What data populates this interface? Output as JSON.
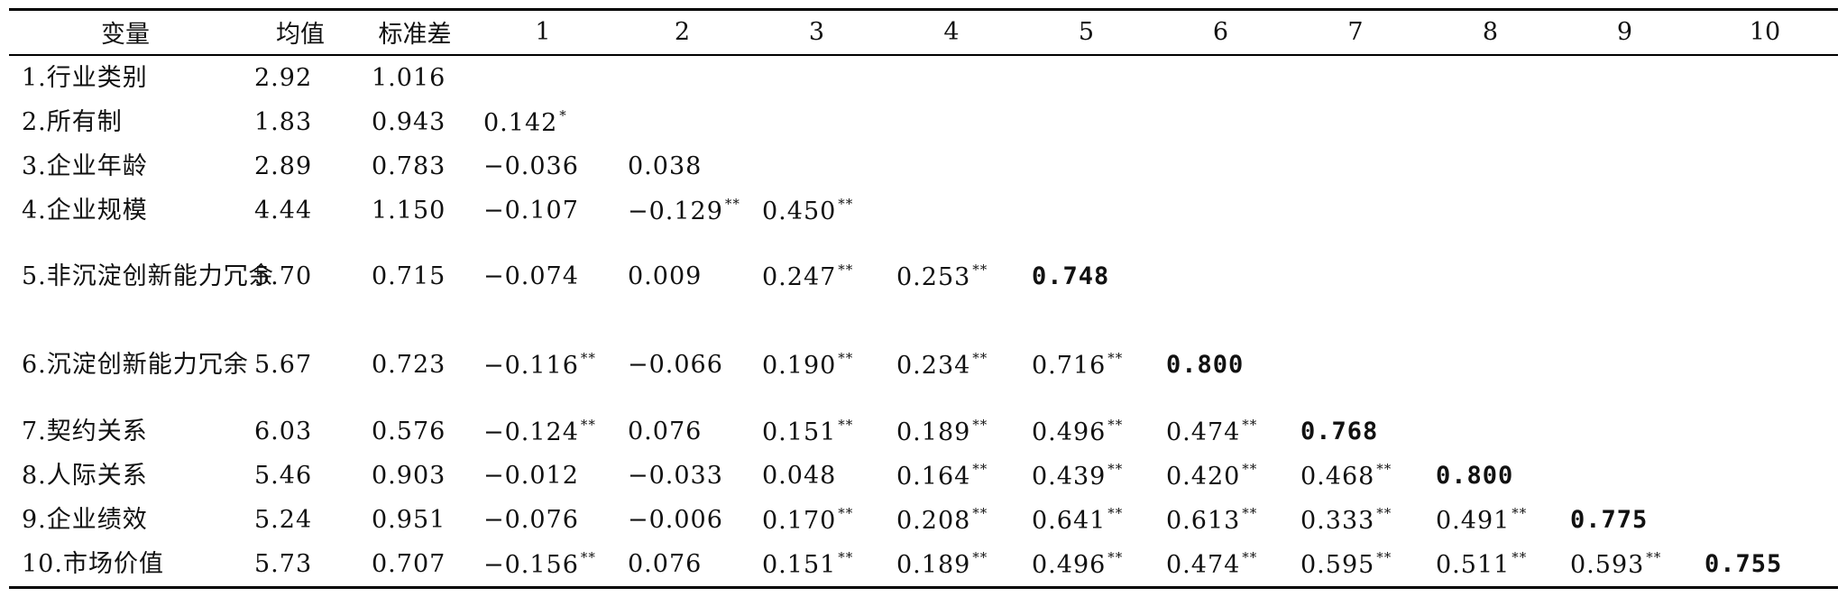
{
  "headers": [
    "变量",
    "均值",
    "标准差",
    "1",
    "2",
    "3",
    "4",
    "5",
    "6",
    "7",
    "8",
    "9",
    "10"
  ],
  "rows": [
    {
      "label": "1.行业类别",
      "mean": "2.92",
      "sd": "1.016",
      "c": [],
      "s": []
    },
    {
      "label": "2.所有制",
      "mean": "1.83",
      "sd": "0.943",
      "c": [
        "0.142"
      ],
      "s": [
        "*"
      ]
    },
    {
      "label": "3.企业年龄",
      "mean": "2.89",
      "sd": "0.783",
      "c": [
        "−0.036",
        "0.038"
      ],
      "s": [
        "",
        ""
      ]
    },
    {
      "label": "4.企业规模",
      "mean": "4.44",
      "sd": "1.150",
      "c": [
        "−0.107",
        "−0.129",
        "0.450"
      ],
      "s": [
        "",
        "**",
        "**"
      ]
    },
    {
      "label": "5.非沉淀创新能力冗余",
      "mean": "5.70",
      "sd": "0.715",
      "c": [
        "−0.074",
        "0.009",
        "0.247",
        "0.253",
        "0.748"
      ],
      "s": [
        "",
        "",
        "**",
        "**",
        ""
      ]
    },
    {
      "label": "6.沉淀创新能力冗余",
      "mean": "5.67",
      "sd": "0.723",
      "c": [
        "−0.116",
        "−0.066",
        "0.190",
        "0.234",
        "0.716",
        "0.800"
      ],
      "s": [
        "**",
        "",
        "**",
        "**",
        "**",
        ""
      ]
    },
    {
      "label": "7.契约关系",
      "mean": "6.03",
      "sd": "0.576",
      "c": [
        "−0.124",
        "0.076",
        "0.151",
        "0.189",
        "0.496",
        "0.474",
        "0.768"
      ],
      "s": [
        "**",
        "",
        "**",
        "**",
        "**",
        "**",
        ""
      ]
    },
    {
      "label": "8.人际关系",
      "mean": "5.46",
      "sd": "0.903",
      "c": [
        "−0.012",
        "−0.033",
        "0.048",
        "0.164",
        "0.439",
        "0.420",
        "0.468",
        "0.800"
      ],
      "s": [
        "",
        "",
        "",
        "**",
        "**",
        "**",
        "**",
        ""
      ]
    },
    {
      "label": "9.企业绩效",
      "mean": "5.24",
      "sd": "0.951",
      "c": [
        "−0.076",
        "−0.006",
        "0.170",
        "0.208",
        "0.641",
        "0.613",
        "0.333",
        "0.491",
        "0.775"
      ],
      "s": [
        "",
        "",
        "**",
        "**",
        "**",
        "**",
        "**",
        "**",
        ""
      ]
    },
    {
      "label": "10.市场价值",
      "mean": "5.73",
      "sd": "0.707",
      "c": [
        "−0.156",
        "0.076",
        "0.151",
        "0.189",
        "0.496",
        "0.474",
        "0.595",
        "0.511",
        "0.593",
        "0.755"
      ],
      "s": [
        "**",
        "",
        "**",
        "**",
        "**",
        "**",
        "**",
        "**",
        "**",
        ""
      ]
    }
  ]
}
